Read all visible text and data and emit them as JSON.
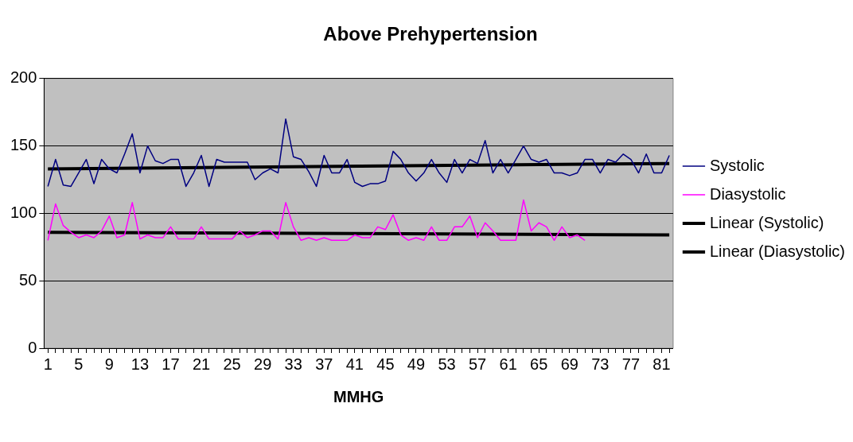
{
  "chart_data": {
    "type": "line",
    "title": "Above Prehypertension",
    "xlabel": "MMHG",
    "x": [
      1,
      2,
      3,
      4,
      5,
      6,
      7,
      8,
      9,
      10,
      11,
      12,
      13,
      14,
      15,
      16,
      17,
      18,
      19,
      20,
      21,
      22,
      23,
      24,
      25,
      26,
      27,
      28,
      29,
      30,
      31,
      32,
      33,
      34,
      35,
      36,
      37,
      38,
      39,
      40,
      41,
      42,
      43,
      44,
      45,
      46,
      47,
      48,
      49,
      50,
      51,
      52,
      53,
      54,
      55,
      56,
      57,
      58,
      59,
      60,
      61,
      62,
      63,
      64,
      65,
      66,
      67,
      68,
      69,
      70,
      71,
      72,
      73,
      74,
      75,
      76,
      77,
      78,
      79,
      80,
      81,
      82
    ],
    "xlim": [
      0.5,
      82.5
    ],
    "xticks": [
      1,
      {
        "value": 2,
        "label": null
      },
      {
        "value": 3,
        "label": null
      },
      {
        "value": 4,
        "label": null
      },
      5,
      {
        "value": 6,
        "label": null
      },
      {
        "value": 7,
        "label": null
      },
      {
        "value": 8,
        "label": null
      },
      9,
      {
        "value": 10,
        "label": null
      },
      {
        "value": 11,
        "label": null
      },
      {
        "value": 12,
        "label": null
      },
      13,
      {
        "value": 14,
        "label": null
      },
      {
        "value": 15,
        "label": null
      },
      {
        "value": 16,
        "label": null
      },
      17,
      {
        "value": 18,
        "label": null
      },
      {
        "value": 19,
        "label": null
      },
      {
        "value": 20,
        "label": null
      },
      21,
      {
        "value": 22,
        "label": null
      },
      {
        "value": 23,
        "label": null
      },
      {
        "value": 24,
        "label": null
      },
      25,
      {
        "value": 26,
        "label": null
      },
      {
        "value": 27,
        "label": null
      },
      {
        "value": 28,
        "label": null
      },
      29,
      {
        "value": 30,
        "label": null
      },
      {
        "value": 31,
        "label": null
      },
      {
        "value": 32,
        "label": null
      },
      33,
      {
        "value": 34,
        "label": null
      },
      {
        "value": 35,
        "label": null
      },
      {
        "value": 36,
        "label": null
      },
      37,
      {
        "value": 38,
        "label": null
      },
      {
        "value": 39,
        "label": null
      },
      {
        "value": 40,
        "label": null
      },
      41,
      {
        "value": 42,
        "label": null
      },
      {
        "value": 43,
        "label": null
      },
      {
        "value": 44,
        "label": null
      },
      45,
      {
        "value": 46,
        "label": null
      },
      {
        "value": 47,
        "label": null
      },
      {
        "value": 48,
        "label": null
      },
      49,
      {
        "value": 50,
        "label": null
      },
      {
        "value": 51,
        "label": null
      },
      {
        "value": 52,
        "label": null
      },
      53,
      {
        "value": 54,
        "label": null
      },
      {
        "value": 55,
        "label": null
      },
      {
        "value": 56,
        "label": null
      },
      57,
      {
        "value": 58,
        "label": null
      },
      {
        "value": 59,
        "label": null
      },
      {
        "value": 60,
        "label": null
      },
      61,
      {
        "value": 62,
        "label": null
      },
      {
        "value": 63,
        "label": null
      },
      {
        "value": 64,
        "label": null
      },
      65,
      {
        "value": 66,
        "label": null
      },
      {
        "value": 67,
        "label": null
      },
      {
        "value": 68,
        "label": null
      },
      69,
      {
        "value": 70,
        "label": null
      },
      {
        "value": 71,
        "label": null
      },
      {
        "value": 72,
        "label": null
      },
      73,
      {
        "value": 74,
        "label": null
      },
      {
        "value": 75,
        "label": null
      },
      {
        "value": 76,
        "label": null
      },
      77,
      {
        "value": 78,
        "label": null
      },
      {
        "value": 79,
        "label": null
      },
      {
        "value": 80,
        "label": null
      },
      81,
      {
        "value": 82,
        "label": null
      }
    ],
    "ylim": [
      0,
      200
    ],
    "yticks": [
      0,
      50,
      100,
      150,
      200
    ],
    "grid": "y",
    "legend": "right",
    "marker": "none",
    "series": [
      {
        "name": "Systolic",
        "color": "#000080",
        "values": [
          120,
          140,
          121,
          120,
          130,
          140,
          122,
          140,
          133,
          130,
          144,
          159,
          130,
          150,
          139,
          137,
          140,
          140,
          120,
          130,
          143,
          120,
          140,
          138,
          138,
          138,
          138,
          125,
          130,
          133,
          130,
          170,
          142,
          140,
          131,
          120,
          143,
          130,
          130,
          140,
          123,
          120,
          122,
          122,
          124,
          146,
          140,
          130,
          124,
          130,
          140,
          130,
          123,
          140,
          130,
          140,
          137,
          154,
          130,
          140,
          130,
          140,
          150,
          140,
          138,
          140,
          130,
          130,
          128,
          130,
          140,
          140,
          130,
          140,
          138,
          144,
          140,
          130,
          144,
          130,
          130,
          143
        ]
      },
      {
        "name": "Diasystolic",
        "color": "#ff00ff",
        "values": [
          80,
          107,
          91,
          86,
          82,
          84,
          82,
          87,
          98,
          82,
          84,
          108,
          81,
          84,
          82,
          82,
          90,
          81,
          81,
          81,
          90,
          81,
          81,
          81,
          81,
          87,
          82,
          84,
          87,
          87,
          81,
          108,
          90,
          80,
          82,
          80,
          82,
          80,
          80,
          80,
          84,
          82,
          82,
          90,
          88,
          99,
          84,
          80,
          82,
          80,
          90,
          80,
          80,
          90,
          90,
          98,
          82,
          93,
          87,
          80,
          80,
          80,
          110,
          87,
          93,
          90,
          80,
          90,
          82,
          84,
          80,
          null,
          null,
          null,
          null,
          null,
          null,
          null,
          null,
          null,
          null,
          null
        ]
      },
      {
        "name": "Linear (Systolic)",
        "type": "line",
        "color": "#000000",
        "values": [
          133,
          null,
          null,
          null,
          null,
          null,
          null,
          null,
          null,
          null,
          null,
          null,
          null,
          null,
          null,
          null,
          null,
          null,
          null,
          null,
          null,
          null,
          null,
          null,
          null,
          null,
          null,
          null,
          null,
          null,
          null,
          null,
          null,
          null,
          null,
          null,
          null,
          null,
          null,
          null,
          null,
          null,
          null,
          null,
          null,
          null,
          null,
          null,
          null,
          null,
          null,
          null,
          null,
          null,
          null,
          null,
          null,
          null,
          null,
          null,
          null,
          null,
          null,
          null,
          null,
          null,
          null,
          null,
          null,
          null,
          null,
          null,
          null,
          null,
          null,
          null,
          null,
          null,
          null,
          null,
          null,
          137
        ]
      },
      {
        "name": "Linear (Diasystolic)",
        "type": "line",
        "color": "#000000",
        "values": [
          86,
          null,
          null,
          null,
          null,
          null,
          null,
          null,
          null,
          null,
          null,
          null,
          null,
          null,
          null,
          null,
          null,
          null,
          null,
          null,
          null,
          null,
          null,
          null,
          null,
          null,
          null,
          null,
          null,
          null,
          null,
          null,
          null,
          null,
          null,
          null,
          null,
          null,
          null,
          null,
          null,
          null,
          null,
          null,
          null,
          null,
          null,
          null,
          null,
          null,
          null,
          null,
          null,
          null,
          null,
          null,
          null,
          null,
          null,
          null,
          null,
          null,
          null,
          null,
          null,
          null,
          null,
          null,
          null,
          null,
          null,
          null,
          null,
          null,
          null,
          null,
          null,
          null,
          null,
          null,
          null,
          84
        ]
      }
    ]
  }
}
